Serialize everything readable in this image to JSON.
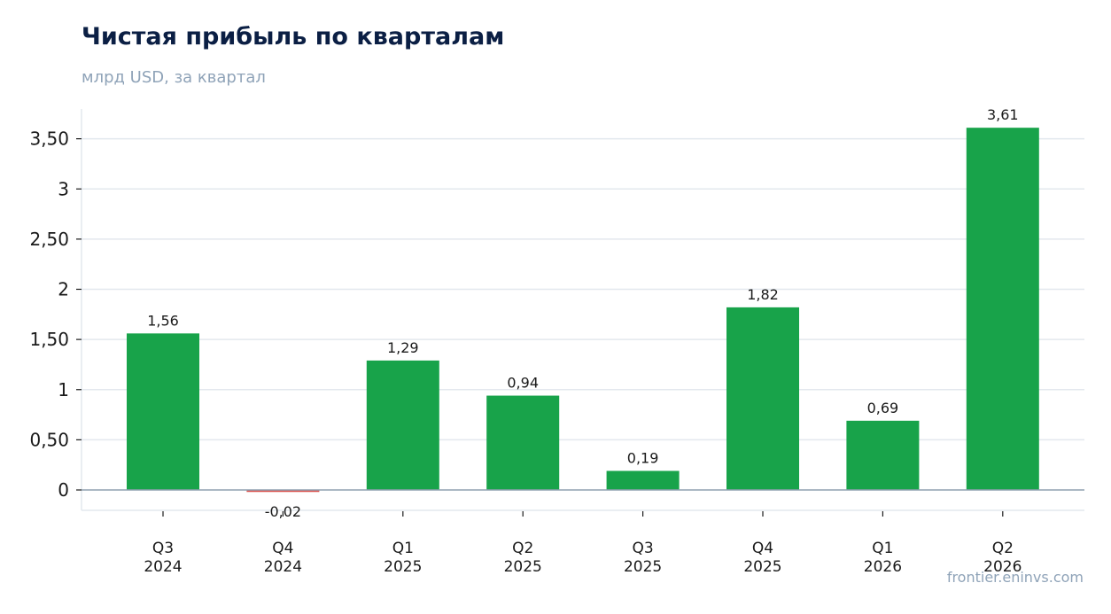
{
  "header": {
    "title": "Чистая прибыль по кварталам",
    "subtitle": "млрд USD, за квартал"
  },
  "footer": {
    "source": "frontier.eninvs.com"
  },
  "colors": {
    "positive": "#18a34a",
    "negative": "#d9534f",
    "grid": "#e3e8ee",
    "axis": "#8fa0b0",
    "title": "#0b1f44",
    "muted": "#8fa3b8"
  },
  "chart_data": {
    "type": "bar",
    "title": "Чистая прибыль по кварталам",
    "subtitle": "млрд USD, за квартал",
    "xlabel": "",
    "ylabel": "",
    "categories": [
      [
        "Q3",
        "2024"
      ],
      [
        "Q4",
        "2024"
      ],
      [
        "Q1",
        "2025"
      ],
      [
        "Q2",
        "2025"
      ],
      [
        "Q3",
        "2025"
      ],
      [
        "Q4",
        "2025"
      ],
      [
        "Q1",
        "2026"
      ],
      [
        "Q2",
        "2026"
      ]
    ],
    "values": [
      1.56,
      -0.02,
      1.29,
      0.94,
      0.19,
      1.82,
      0.69,
      3.61
    ],
    "value_labels": [
      "1,56",
      "-0,02",
      "1,29",
      "0,94",
      "0,19",
      "1,82",
      "0,69",
      "3,61"
    ],
    "ylim": [
      -0.2,
      3.8
    ],
    "yticks": [
      0,
      0.5,
      1,
      1.5,
      2,
      2.5,
      3,
      3.5
    ],
    "ytick_labels": [
      "0",
      "0,50",
      "1",
      "1,50",
      "2",
      "2,50",
      "3",
      "3,50"
    ],
    "grid": true,
    "legend": "none"
  }
}
